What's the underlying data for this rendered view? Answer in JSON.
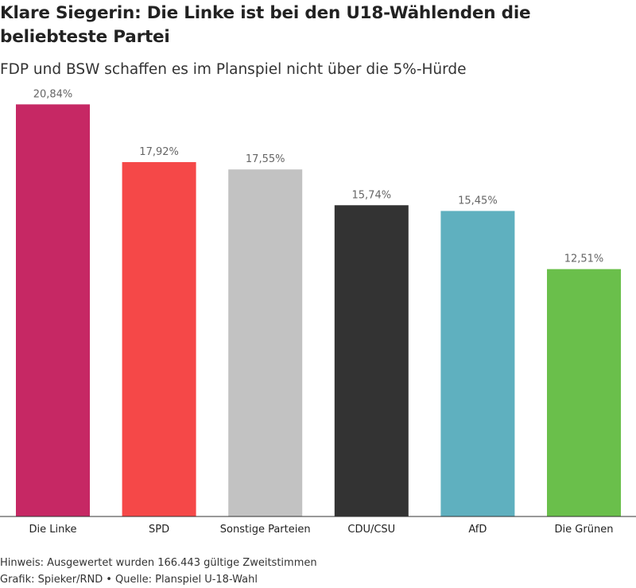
{
  "chart_data": {
    "type": "bar",
    "title": "Klare Siegerin: Die Linke ist bei den U18-Wählenden die beliebteste Partei",
    "subtitle": "FDP und BSW schaffen es im Planspiel nicht über die 5%-Hürde",
    "categories": [
      "Die Linke",
      "SPD",
      "Sonstige Parteien",
      "CDU/CSU",
      "AfD",
      "Die Grünen"
    ],
    "values": [
      20.84,
      17.92,
      17.55,
      15.74,
      15.45,
      12.51
    ],
    "value_labels": [
      "20,84%",
      "17,92%",
      "17,55%",
      "15,74%",
      "15,45%",
      "12,51%"
    ],
    "colors": [
      "#c62864",
      "#f54848",
      "#c2c2c2",
      "#333333",
      "#5fb0bf",
      "#6abf4b"
    ],
    "ylim": [
      0,
      22.1
    ],
    "grid": false,
    "legend": "none"
  },
  "footer": {
    "note": "Hinweis: Ausgewertet wurden 166.443 gültige Zweitstimmen",
    "credit": "Grafik: Spieker/RND",
    "separator": "•",
    "source": "Quelle: Planspiel U-18-Wahl"
  }
}
